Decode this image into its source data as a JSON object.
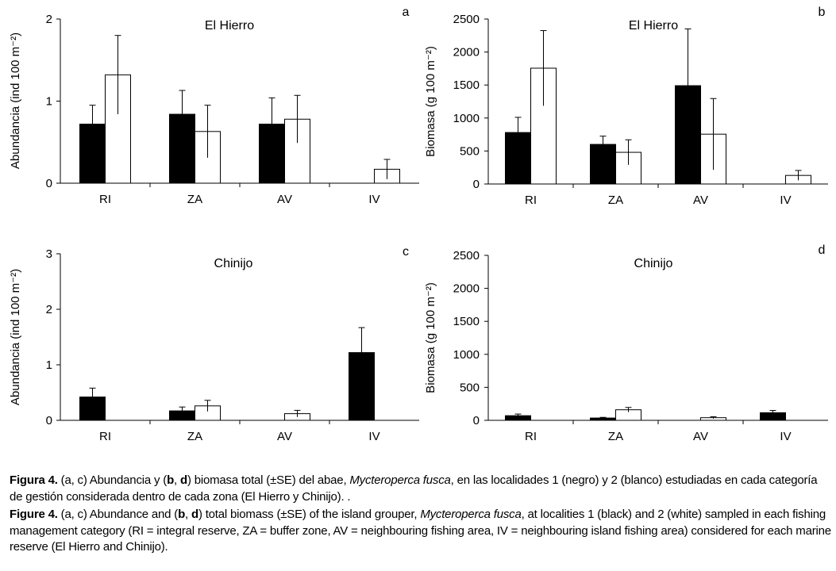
{
  "chart_data": [
    {
      "type": "bar",
      "panel_letter": "a",
      "title": "El Hierro",
      "ylabel": "Abundancia (ind 100 m⁻²)",
      "xlabel": "",
      "ylim": [
        0,
        2
      ],
      "yticks": [
        0,
        1,
        2
      ],
      "categories": [
        "RI",
        "ZA",
        "AV",
        "IV"
      ],
      "series": [
        {
          "name": "1 (negro)",
          "color": "#000000",
          "values": [
            0.72,
            0.84,
            0.72,
            0
          ],
          "errors": [
            0.23,
            0.29,
            0.32,
            0
          ]
        },
        {
          "name": "2 (blanco)",
          "color": "#ffffff",
          "values": [
            1.32,
            0.63,
            0.78,
            0.17
          ],
          "errors": [
            0.48,
            0.32,
            0.29,
            0.12
          ]
        }
      ]
    },
    {
      "type": "bar",
      "panel_letter": "b",
      "title": "El Hierro",
      "ylabel": "Biomasa (g 100 m⁻²)",
      "xlabel": "",
      "ylim": [
        0,
        2500
      ],
      "yticks": [
        0,
        500,
        1000,
        1500,
        2000,
        2500
      ],
      "categories": [
        "RI",
        "ZA",
        "AV",
        "IV"
      ],
      "series": [
        {
          "name": "1 (negro)",
          "color": "#000000",
          "values": [
            780,
            600,
            1490,
            0
          ],
          "errors": [
            230,
            125,
            860,
            0
          ]
        },
        {
          "name": "2 (blanco)",
          "color": "#ffffff",
          "values": [
            1755,
            480,
            755,
            130
          ],
          "errors": [
            570,
            190,
            540,
            75
          ]
        }
      ]
    },
    {
      "type": "bar",
      "panel_letter": "c",
      "title": "Chinijo",
      "ylabel": "Abundancia (ind 100 m⁻²)",
      "xlabel": "",
      "ylim": [
        0,
        3
      ],
      "yticks": [
        0,
        1,
        2,
        3
      ],
      "categories": [
        "RI",
        "ZA",
        "AV",
        "IV"
      ],
      "series": [
        {
          "name": "1 (negro)",
          "color": "#000000",
          "values": [
            0.42,
            0.17,
            0,
            1.22
          ],
          "errors": [
            0.16,
            0.07,
            0,
            0.45
          ]
        },
        {
          "name": "2 (blanco)",
          "color": "#ffffff",
          "values": [
            0,
            0.26,
            0.12,
            0
          ],
          "errors": [
            0,
            0.1,
            0.06,
            0
          ]
        }
      ]
    },
    {
      "type": "bar",
      "panel_letter": "d",
      "title": "Chinijo",
      "ylabel": "Biomasa (g 100 m⁻²)",
      "xlabel": "",
      "ylim": [
        0,
        2500
      ],
      "yticks": [
        0,
        500,
        1000,
        1500,
        2000,
        2500
      ],
      "categories": [
        "RI",
        "ZA",
        "AV",
        "IV"
      ],
      "series": [
        {
          "name": "1 (negro)",
          "color": "#000000",
          "values": [
            70,
            35,
            0,
            115
          ],
          "errors": [
            25,
            10,
            0,
            35
          ]
        },
        {
          "name": "2 (blanco)",
          "color": "#ffffff",
          "values": [
            0,
            160,
            40,
            0
          ],
          "errors": [
            0,
            35,
            15,
            0
          ]
        }
      ]
    }
  ],
  "caption": {
    "es_label": "Figura 4.",
    "es_text_1": " (a, c) Abundancia y (",
    "es_b": "b",
    "es_sep": ", ",
    "es_d": "d",
    "es_text_2": ") biomasa total (±SE) del abae, ",
    "es_species": "Mycteroperca fusca",
    "es_text_3": ", en las localidades 1 (negro) y 2 (blanco) estudiadas en cada categoría de gestión considerada dentro de cada zona (El Hierro y Chinijo). .",
    "en_label": "Figure 4.",
    "en_text_1": " (a, c) Abundance and (",
    "en_b": "b",
    "en_sep": ", ",
    "en_d": "d",
    "en_text_2": ") total biomass (±SE) of the island grouper, ",
    "en_species": "Mycteroperca fusca",
    "en_text_3": ", at localities 1 (black) and 2 (white) sampled in each fishing management category (RI = integral reserve, ZA = buffer zone, AV = neighbouring fishing area, IV = neighbouring island fishing area) considered for each marine reserve (El Hierro and Chinijo)."
  }
}
